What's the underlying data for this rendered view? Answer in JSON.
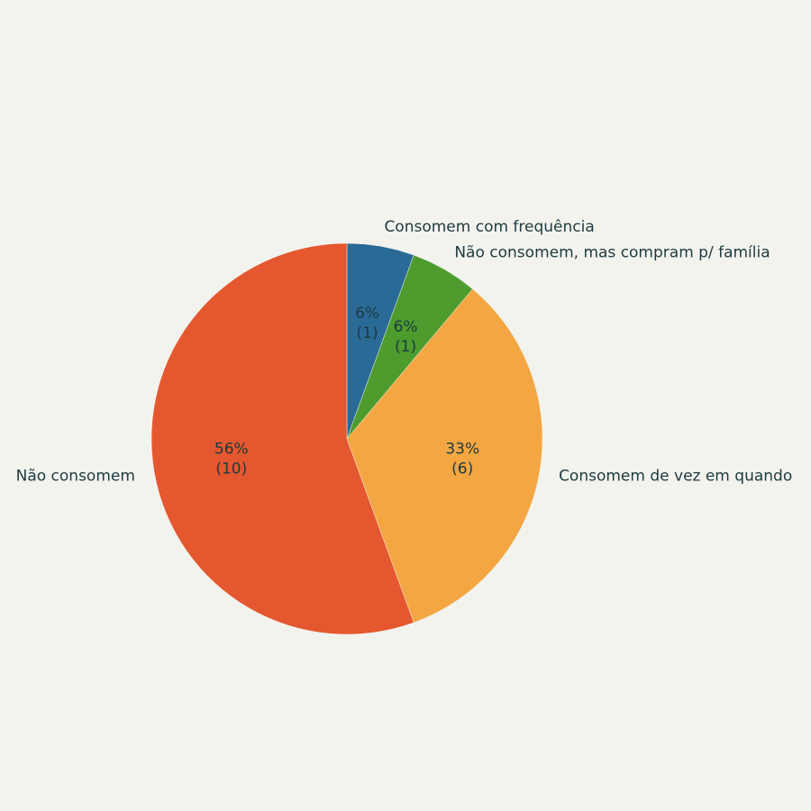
{
  "chart_data": {
    "type": "pie",
    "categories": [
      "Consomem com frequência",
      "Não consomem, mas compram p/ família",
      "Consomem de vez em quando",
      "Não consomem"
    ],
    "values": [
      6,
      6,
      33,
      56
    ],
    "value_labels": [
      "6%",
      "6%",
      "33%",
      "56%"
    ],
    "counts": [
      1,
      1,
      6,
      10
    ],
    "count_labels": [
      "(1)",
      "(1)",
      "(6)",
      "(10)"
    ],
    "colors": [
      "#2a6a96",
      "#4d9c2d",
      "#f3a642",
      "#e5582f"
    ]
  }
}
